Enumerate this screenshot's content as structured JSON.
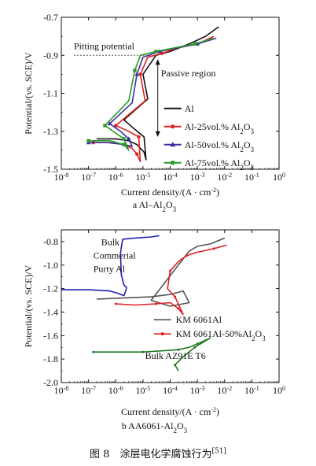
{
  "figure_caption": "图 8　涂层电化学腐蚀行为",
  "figure_ref": "[51]",
  "chart_data": [
    {
      "type": "line",
      "title": "",
      "caption": "a  Al–Al",
      "caption_sub": "2",
      "caption_tail": "O",
      "caption_sub2": "3",
      "xlabel": "Current density/(A · cm",
      "xlabel_sup": "-2",
      "xlabel_end": ")",
      "ylabel": "Potential/(vs. SCE)/V",
      "xscale": "log",
      "xlim": [
        1e-08,
        1
      ],
      "ylim": [
        -1.5,
        -0.7
      ],
      "x_ticks": [
        {
          "v": 1e-08,
          "b": "10",
          "e": "-8"
        },
        {
          "v": 1e-07,
          "b": "10",
          "e": "-7"
        },
        {
          "v": 1e-06,
          "b": "10",
          "e": "-6"
        },
        {
          "v": 1e-05,
          "b": "10",
          "e": "-5"
        },
        {
          "v": 0.0001,
          "b": "10",
          "e": "-4"
        },
        {
          "v": 0.001,
          "b": "10",
          "e": "-3"
        },
        {
          "v": 0.01,
          "b": "10",
          "e": "-2"
        },
        {
          "v": 0.1,
          "b": "10",
          "e": "-1"
        },
        {
          "v": 1,
          "b": "10",
          "e": "0"
        }
      ],
      "y_ticks": [
        "-1.5",
        "-1.3",
        "-1.1",
        "-0.9",
        "-0.7"
      ],
      "y_tick_values": [
        -1.5,
        -1.3,
        -1.1,
        -0.9,
        -0.7
      ],
      "annotations": {
        "pitting": "Pitting potential",
        "pitting_level": -0.9,
        "passive": "Passive region"
      },
      "legend_position": "right",
      "series": [
        {
          "name": "Al",
          "sub": "",
          "color": "#111111",
          "marker": "none",
          "x": [
            2e-07,
            1e-06,
            3e-06,
            6e-06,
            1.1e-05,
            1.3e-05,
            1.1e-05,
            5e-06,
            2e-06,
            1.5e-05,
            1e-05,
            3e-05,
            0.0001,
            0.0005,
            0.002,
            0.006
          ],
          "y": [
            -1.34,
            -1.34,
            -1.35,
            -1.37,
            -1.41,
            -1.45,
            -1.33,
            -1.29,
            -1.24,
            -1.13,
            -1.0,
            -0.9,
            -0.88,
            -0.84,
            -0.8,
            -0.75
          ]
        },
        {
          "name": "Al-25vol.% Al",
          "sub": "2",
          "tail": "O",
          "sub2": "3",
          "color": "#e02020",
          "marker": "circle",
          "x": [
            1.5e-07,
            8e-07,
            2e-06,
            4e-06,
            6e-06,
            8e-06,
            7e-06,
            3e-06,
            1e-06,
            1.2e-05,
            8e-06,
            1.5e-05,
            5e-05,
            0.0002,
            0.001,
            0.004
          ],
          "y": [
            -1.36,
            -1.36,
            -1.37,
            -1.39,
            -1.42,
            -1.46,
            -1.33,
            -1.3,
            -1.27,
            -1.14,
            -1.0,
            -0.91,
            -0.89,
            -0.86,
            -0.84,
            -0.8
          ]
        },
        {
          "name": "Al-50vol.% Al",
          "sub": "2",
          "tail": "O",
          "sub2": "3",
          "color": "#3a2fa0",
          "marker": "triangle",
          "x": [
            1e-07,
            5e-07,
            2e-06,
            4e-06,
            3e-06,
            1.5e-06,
            6e-07,
            4e-06,
            6e-06,
            1e-05,
            4e-05,
            0.0002,
            0.001,
            0.005
          ],
          "y": [
            -1.36,
            -1.36,
            -1.37,
            -1.38,
            -1.34,
            -1.3,
            -1.26,
            -1.15,
            -1.0,
            -0.91,
            -0.88,
            -0.86,
            -0.84,
            -0.81
          ]
        },
        {
          "name": "Al-75vol.% Al",
          "sub": "2",
          "tail": "O",
          "sub2": "3",
          "color": "#2a9a2a",
          "marker": "square",
          "x": [
            1e-07,
            6e-07,
            2e-06,
            3e-06,
            2e-06,
            1e-06,
            4e-07,
            3e-06,
            5e-06,
            8e-06,
            3e-05,
            0.00015,
            0.0008,
            0.004
          ],
          "y": [
            -1.35,
            -1.35,
            -1.37,
            -1.4,
            -1.34,
            -1.31,
            -1.27,
            -1.14,
            -0.98,
            -0.9,
            -0.88,
            -0.86,
            -0.84,
            -0.81
          ]
        }
      ]
    },
    {
      "type": "line",
      "title": "",
      "caption": "b  AA6061-Al",
      "caption_sub": "2",
      "caption_tail": "O",
      "caption_sub2": "3",
      "xlabel": "Current density/(A · cm",
      "xlabel_sup": "-2",
      "xlabel_end": ")",
      "ylabel": "Potential/(vs. SCE)/V",
      "xscale": "log",
      "xlim": [
        1e-08,
        1
      ],
      "ylim": [
        -2.0,
        -0.7
      ],
      "x_ticks": [
        {
          "v": 1e-08,
          "b": "10",
          "e": "-8"
        },
        {
          "v": 1e-07,
          "b": "10",
          "e": "-7"
        },
        {
          "v": 1e-06,
          "b": "10",
          "e": "-6"
        },
        {
          "v": 1e-05,
          "b": "10",
          "e": "-5"
        },
        {
          "v": 0.0001,
          "b": "10",
          "e": "-4"
        },
        {
          "v": 0.001,
          "b": "10",
          "e": "-3"
        },
        {
          "v": 0.01,
          "b": "10",
          "e": "-2"
        },
        {
          "v": 0.1,
          "b": "10",
          "e": "-1"
        },
        {
          "v": 1,
          "b": "10",
          "e": "0"
        }
      ],
      "y_ticks": [
        "-2.0",
        "-1.8",
        "-1.6",
        "-1.4",
        "-1.2",
        "-1.0",
        "-0.8"
      ],
      "y_tick_values": [
        -2.0,
        -1.8,
        -1.6,
        -1.4,
        -1.2,
        -1.0,
        -0.8
      ],
      "annotations": {
        "bulk_pure": [
          "Bulk",
          "Commerial",
          "Purty Al"
        ],
        "bulk_az": "Bulk AZ91E T6"
      },
      "legend_position": "right",
      "series": [
        {
          "name": "Bulk Commerial Purty Al",
          "color": "#2020b0",
          "marker": "none",
          "in_legend": false,
          "x": [
            1e-08,
            1e-07,
            6e-07,
            1.2e-06,
            2e-06,
            2.4e-06,
            2.5e-06,
            2e-06,
            1.6e-06,
            1.5e-06,
            1.6e-06,
            1.8e-06,
            5e-06,
            2e-05,
            4e-05
          ],
          "y": [
            -1.21,
            -1.21,
            -1.22,
            -1.24,
            -1.26,
            -1.21,
            -1.19,
            -1.17,
            -1.08,
            -0.9,
            -0.85,
            -0.78,
            -0.77,
            -0.76,
            -0.75
          ]
        },
        {
          "name": "KM 6061Al",
          "sub": "",
          "color": "#555555",
          "marker": "none",
          "in_legend": true,
          "x": [
            2e-07,
            2e-06,
            2e-05,
            0.0001,
            0.0003,
            0.0005,
            0.0001,
            2e-05,
            5e-05,
            0.0002,
            0.0005,
            0.001,
            0.003,
            0.01
          ],
          "y": [
            -1.29,
            -1.28,
            -1.27,
            -1.25,
            -1.22,
            -1.32,
            -1.35,
            -1.3,
            -1.18,
            -1.0,
            -0.88,
            -0.84,
            -0.82,
            -0.77
          ]
        },
        {
          "name": "KM 6061Al-50%Al",
          "sub": "2",
          "tail": "O",
          "sub2": "3",
          "color": "#e02020",
          "marker": "dot",
          "in_legend": true,
          "x": [
            1e-06,
            5e-06,
            3e-05,
            0.0001,
            0.0002,
            0.0003,
            0.00015,
            8e-05,
            0.0001,
            0.0002,
            0.0004,
            0.001,
            0.004,
            0.012
          ],
          "y": [
            -1.33,
            -1.34,
            -1.33,
            -1.32,
            -1.37,
            -1.42,
            -1.27,
            -1.2,
            -1.05,
            -0.97,
            -0.92,
            -0.89,
            -0.86,
            -0.83
          ]
        },
        {
          "name": "Bulk AZ91E T6",
          "color": "#1f7a1f",
          "marker": "dot",
          "in_legend": false,
          "x": [
            1.5e-07,
            1e-06,
            1e-05,
            5e-05,
            0.0002,
            0.0005,
            0.001,
            0.003,
            0.0008,
            0.0003,
            0.00015,
            0.0002
          ],
          "y": [
            -1.74,
            -1.74,
            -1.74,
            -1.73,
            -1.72,
            -1.7,
            -1.67,
            -1.62,
            -1.7,
            -1.78,
            -1.85,
            -1.9
          ]
        }
      ]
    }
  ]
}
